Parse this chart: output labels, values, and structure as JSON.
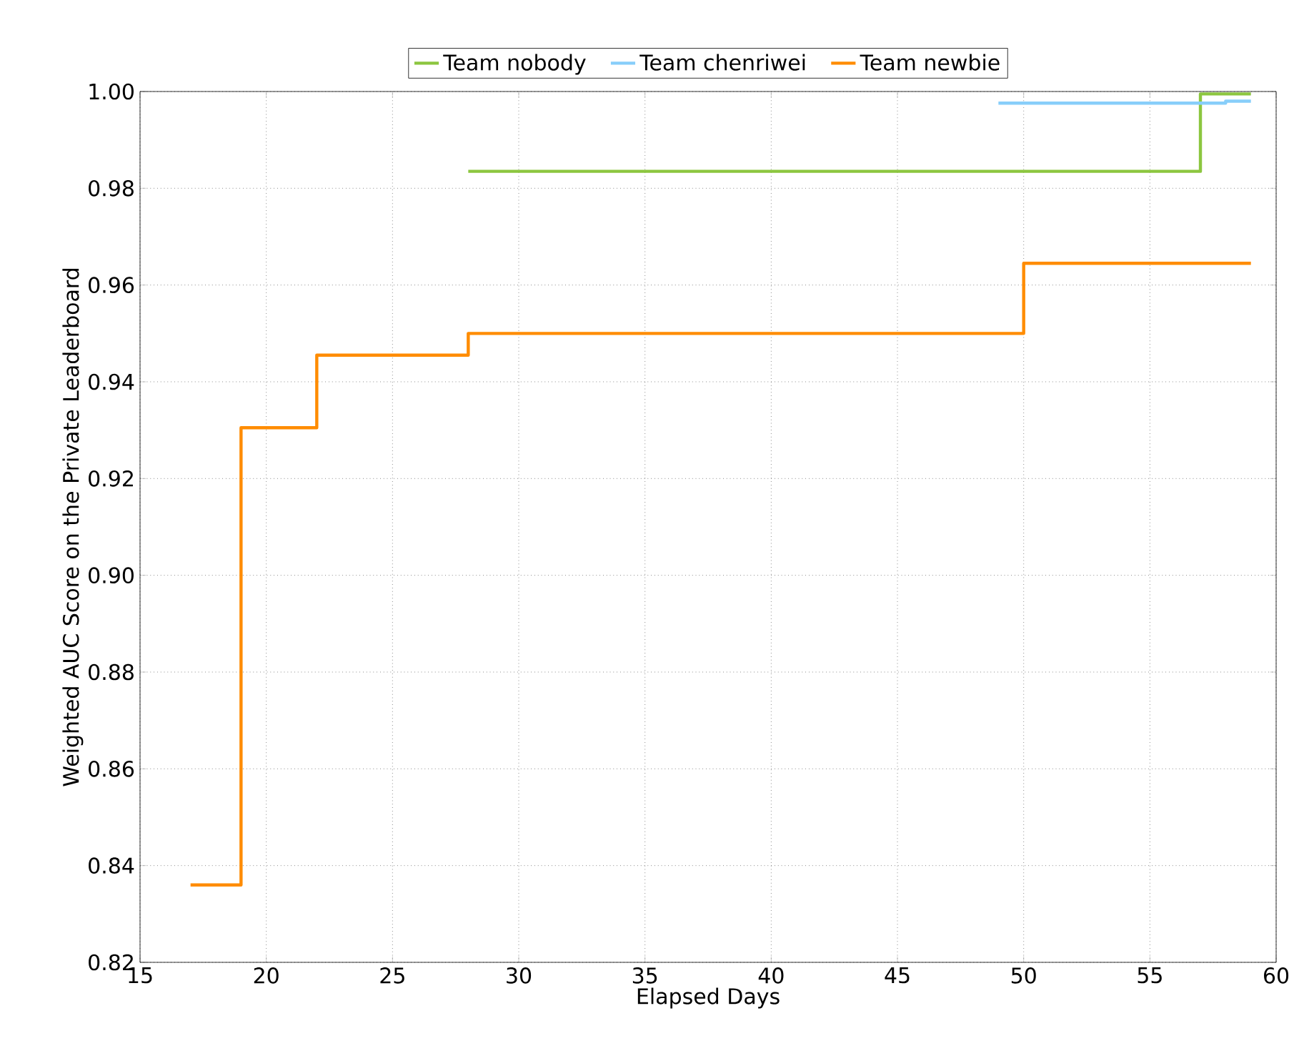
{
  "chart_data": {
    "type": "step",
    "xlabel": "Elapsed Days",
    "ylabel": "Weighted AUC Score on the Private Leaderboard",
    "xlim": [
      15,
      60
    ],
    "ylim": [
      0.82,
      1.0
    ],
    "xticks": [
      15,
      20,
      25,
      30,
      35,
      40,
      45,
      50,
      55,
      60
    ],
    "yticks": [
      {
        "value": 0.82,
        "label": "0.82"
      },
      {
        "value": 0.84,
        "label": "0.84"
      },
      {
        "value": 0.86,
        "label": "0.86"
      },
      {
        "value": 0.88,
        "label": "0.88"
      },
      {
        "value": 0.9,
        "label": "0.90"
      },
      {
        "value": 0.92,
        "label": "0.92"
      },
      {
        "value": 0.94,
        "label": "0.94"
      },
      {
        "value": 0.96,
        "label": "0.96"
      },
      {
        "value": 0.98,
        "label": "0.98"
      },
      {
        "value": 1.0,
        "label": "1.00"
      }
    ],
    "grid": true,
    "legend": "top",
    "line_style": "solid",
    "marker": "none",
    "series": [
      {
        "name": "Team nobody",
        "color": "#8cc63f",
        "x": [
          28,
          57,
          59
        ],
        "values": [
          0.9835,
          0.9995,
          0.9995
        ]
      },
      {
        "name": "Team chenriwei",
        "color": "#87cefa",
        "x": [
          49,
          58,
          59
        ],
        "values": [
          0.9976,
          0.998,
          0.998
        ]
      },
      {
        "name": "Team newbie",
        "color": "#ff8c00",
        "x": [
          17,
          19,
          22,
          28,
          50,
          59
        ],
        "values": [
          0.836,
          0.9305,
          0.9455,
          0.95,
          0.9645,
          0.9645
        ]
      }
    ]
  }
}
